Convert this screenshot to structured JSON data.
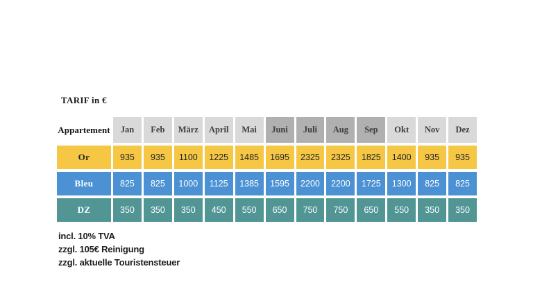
{
  "page": {
    "title": "TARIF in €",
    "footnotes": [
      "incl. 10% TVA",
      "zzgl. 105€ Reinigung",
      "zzgl. aktuelle Touristensteuer"
    ]
  },
  "chart_data": {
    "type": "table",
    "title": "TARIF in €",
    "corner_header": "Appartement",
    "columns": [
      "Jan",
      "Feb",
      "März",
      "April",
      "Mai",
      "Juni",
      "Juli",
      "Aug",
      "Sep",
      "Okt",
      "Nov",
      "Dez"
    ],
    "dark_header_columns": [
      "Juni",
      "Juli",
      "Aug",
      "Sep"
    ],
    "header_colors": {
      "light": "#d9d9d9",
      "dark": "#b0b0b0"
    },
    "rows": [
      {
        "label": "Or",
        "values": [
          935,
          935,
          1100,
          1225,
          1485,
          1695,
          2325,
          2325,
          1825,
          1400,
          935,
          935
        ],
        "color": "#f6c645",
        "text_color": "#242424"
      },
      {
        "label": "Bleu",
        "values": [
          825,
          825,
          1000,
          1125,
          1385,
          1595,
          2200,
          2200,
          1725,
          1300,
          825,
          825
        ],
        "color": "#4b91d4",
        "text_color": "#ffffff"
      },
      {
        "label": "DZ",
        "values": [
          350,
          350,
          350,
          450,
          550,
          650,
          750,
          750,
          650,
          550,
          350,
          350
        ],
        "color": "#529595",
        "text_color": "#ffffff"
      }
    ]
  }
}
